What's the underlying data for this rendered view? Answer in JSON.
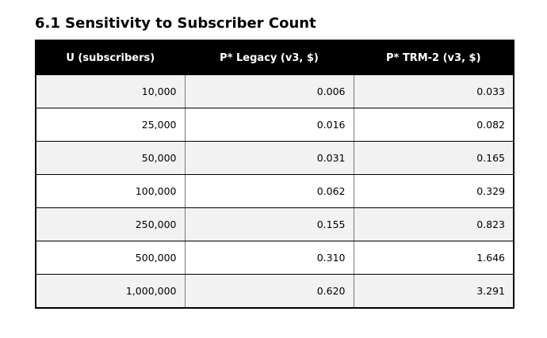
{
  "title": "6.1 Sensitivity to Subscriber Count",
  "table": {
    "headers": [
      "U (subscribers)",
      "P* Legacy (v3, $)",
      "P* TRM-2 (v3, $)"
    ],
    "rows": [
      [
        "10,000",
        "0.006",
        "0.033"
      ],
      [
        "25,000",
        "0.016",
        "0.082"
      ],
      [
        "50,000",
        "0.031",
        "0.165"
      ],
      [
        "100,000",
        "0.062",
        "0.329"
      ],
      [
        "250,000",
        "0.155",
        "0.823"
      ],
      [
        "500,000",
        "0.310",
        "1.646"
      ],
      [
        "1,000,000",
        "0.620",
        "3.291"
      ]
    ]
  }
}
